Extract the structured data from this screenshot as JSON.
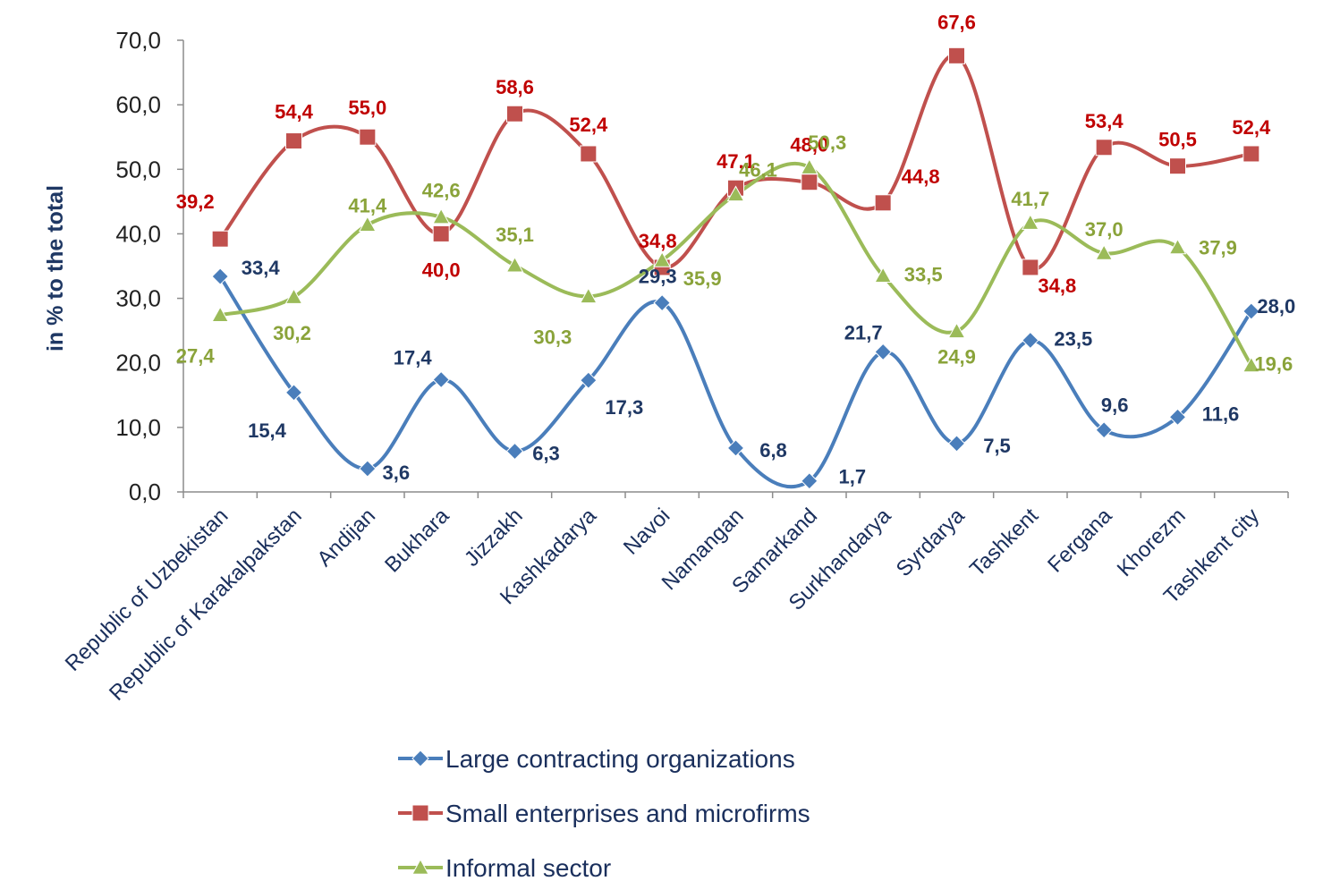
{
  "chart_data": {
    "type": "line",
    "ylabel": "in  % to the total",
    "ylim": [
      0,
      70
    ],
    "yticks": [
      "0,0",
      "10,0",
      "20,0",
      "30,0",
      "40,0",
      "50,0",
      "60,0",
      "70,0"
    ],
    "grid": false,
    "legend_position": "bottom",
    "smooth": true,
    "categories": [
      "Republic of Uzbekistan",
      "Republic of Karakalpakstan",
      "Andijan",
      "Bukhara",
      "Jizzakh",
      "Kashkadarya",
      "Navoi",
      "Namangan",
      "Samarkand",
      "Surkhandarya",
      "Syrdarya",
      "Tashkent",
      "Fergana",
      "Khorezm",
      "Tashkent city"
    ],
    "series": [
      {
        "name": "Large contracting organizations",
        "color": "#4a7ebb",
        "label_color": "#1f3864",
        "marker": "diamond",
        "values": [
          33.4,
          15.4,
          3.6,
          17.4,
          6.3,
          17.3,
          29.3,
          6.8,
          1.7,
          21.7,
          7.5,
          23.5,
          9.6,
          11.6,
          28.0
        ],
        "labels": [
          "33,4",
          "15,4",
          "3,6",
          "17,4",
          "6,3",
          "17,3",
          "29,3",
          "6,8",
          "1,7",
          "21,7",
          "7,5",
          "23,5",
          "9,6",
          "11,6",
          "28,0"
        ]
      },
      {
        "name": "Small enterprises and microfirms",
        "color": "#c0504d",
        "label_color": "#c00000",
        "marker": "square",
        "values": [
          39.2,
          54.4,
          55.0,
          40.0,
          58.6,
          52.4,
          34.8,
          47.1,
          48.0,
          44.8,
          67.6,
          34.8,
          53.4,
          50.5,
          52.4
        ],
        "labels": [
          "39,2",
          "54,4",
          "55,0",
          "40,0",
          "58,6",
          "52,4",
          "34,8",
          "47,1",
          "48,0",
          "44,8",
          "67,6",
          "34,8",
          "53,4",
          "50,5",
          "52,4"
        ]
      },
      {
        "name": "Informal sector",
        "color": "#9bbb59",
        "label_color": "#8aa33a",
        "marker": "triangle",
        "values": [
          27.4,
          30.2,
          41.4,
          42.6,
          35.1,
          30.3,
          35.9,
          46.1,
          50.3,
          33.5,
          24.9,
          41.7,
          37.0,
          37.9,
          19.6
        ],
        "labels": [
          "27,4",
          "30,2",
          "41,4",
          "42,6",
          "35,1",
          "30,3",
          "35,9",
          "46,1",
          "50,3",
          "33,5",
          "24,9",
          "41,7",
          "37,0",
          "37,9",
          "19,6"
        ]
      }
    ]
  }
}
